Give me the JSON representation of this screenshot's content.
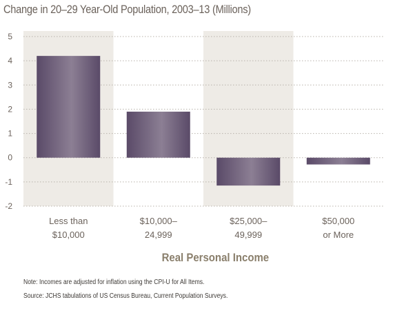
{
  "chart_data": {
    "type": "bar",
    "title": "Change in 20–29 Year-Old Population, 2003–13 (Millions)",
    "xlabel": "Real Personal Income",
    "ylabel": "",
    "categories": [
      [
        "Less than",
        "$10,000"
      ],
      [
        "$10,000–",
        "24,999"
      ],
      [
        "$25,000–",
        "49,999"
      ],
      [
        "$50,000",
        "or More"
      ]
    ],
    "values": [
      4.2,
      1.9,
      -1.15,
      -0.28
    ],
    "ylim": [
      -2,
      5
    ],
    "yticks": [
      "5",
      "4",
      "3",
      "2",
      "1",
      "0",
      "-1",
      "-2"
    ],
    "grid": true,
    "shaded_columns": [
      0,
      2
    ]
  },
  "notes": {
    "note": "Note: Incomes are adjusted for inflation using the CPI-U for All Items.",
    "source": "Source: JCHS tabulations of US Census Bureau, Current Population Surveys."
  },
  "colors": {
    "bar": "#6a5a78",
    "bar_highlight": "#8c7f94",
    "shade": "#eeebe6",
    "grid": "#b8b2aa",
    "text": "#6b625b"
  }
}
